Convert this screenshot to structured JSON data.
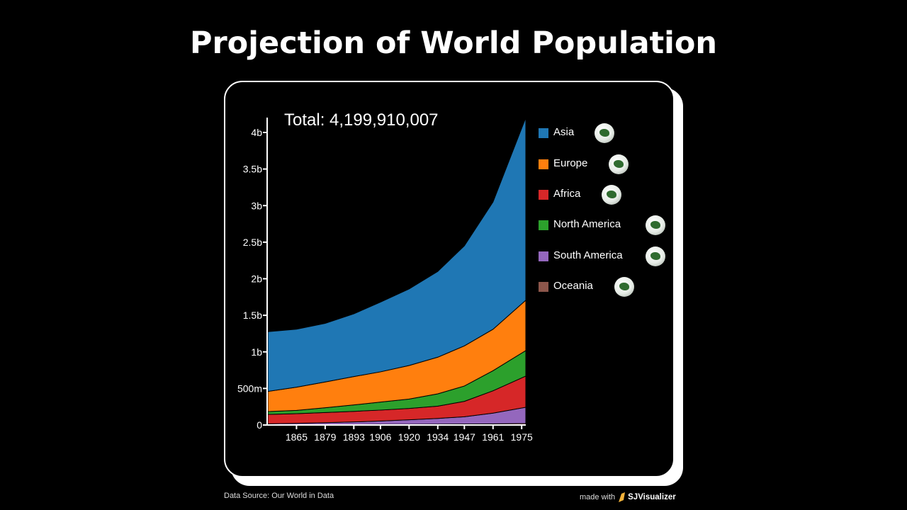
{
  "title": "Projection of World Population",
  "total_label": "Total: 4,199,910,007",
  "footer": {
    "source": "Data Source: Our World in Data",
    "made_with": "made with",
    "brand": "SJVisualizer"
  },
  "chart_data": {
    "type": "area",
    "stacked": true,
    "title": "Projection of World Population",
    "xlabel": "",
    "ylabel": "",
    "x": [
      1851,
      1865,
      1879,
      1893,
      1906,
      1920,
      1934,
      1947,
      1961,
      1977
    ],
    "xlim": [
      1851,
      1977
    ],
    "ylim": [
      0,
      4.2
    ],
    "unit": "billions",
    "x_ticks": [
      "1865",
      "1879",
      "1893",
      "1906",
      "1920",
      "1934",
      "1947",
      "1961",
      "1975"
    ],
    "y_ticks": [
      {
        "v": 0,
        "label": "0"
      },
      {
        "v": 0.5,
        "label": "500m"
      },
      {
        "v": 1,
        "label": "1b"
      },
      {
        "v": 1.5,
        "label": "1.5b"
      },
      {
        "v": 2,
        "label": "2b"
      },
      {
        "v": 2.5,
        "label": "2.5b"
      },
      {
        "v": 3,
        "label": "3b"
      },
      {
        "v": 3.5,
        "label": "3.5b"
      },
      {
        "v": 4,
        "label": "4b"
      }
    ],
    "grid": false,
    "legend_position": "right",
    "series": [
      {
        "name": "Asia",
        "color": "#1f77b4",
        "icon": "globe-asia-icon",
        "values": [
          0.817,
          0.793,
          0.802,
          0.858,
          0.953,
          1.046,
          1.173,
          1.368,
          1.741,
          2.494
        ]
      },
      {
        "name": "Europe",
        "color": "#ff7f0e",
        "icon": "globe-europe-icon",
        "values": [
          0.275,
          0.317,
          0.352,
          0.387,
          0.414,
          0.459,
          0.501,
          0.549,
          0.566,
          0.688
        ]
      },
      {
        "name": "Africa",
        "color": "#d62728",
        "icon": "globe-africa-icon",
        "values": [
          0.129,
          0.132,
          0.139,
          0.145,
          0.149,
          0.155,
          0.168,
          0.21,
          0.306,
          0.427
        ]
      },
      {
        "name": "North America",
        "color": "#2ca02c",
        "icon": "globe-north-america-icon",
        "values": [
          0.039,
          0.045,
          0.065,
          0.088,
          0.109,
          0.129,
          0.168,
          0.21,
          0.275,
          0.349
        ]
      },
      {
        "name": "South America",
        "color": "#9467bd",
        "icon": "globe-south-america-icon",
        "values": [
          0.014,
          0.02,
          0.027,
          0.036,
          0.047,
          0.062,
          0.079,
          0.1,
          0.146,
          0.221
        ]
      },
      {
        "name": "Oceania",
        "color": "#8c564b",
        "icon": "globe-oceania-icon",
        "values": [
          0.002,
          0.003,
          0.005,
          0.006,
          0.008,
          0.009,
          0.011,
          0.013,
          0.016,
          0.021
        ]
      }
    ],
    "stack_order_bottom_to_top": [
      "Oceania",
      "South America",
      "Africa",
      "North America",
      "Europe",
      "Asia"
    ]
  }
}
